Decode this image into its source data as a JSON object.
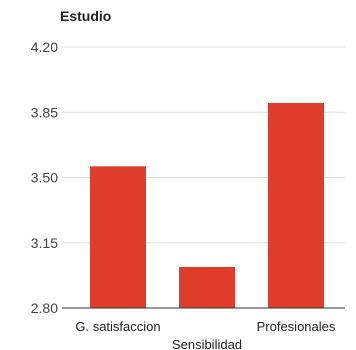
{
  "chart_data": {
    "type": "bar",
    "title": "Estudio",
    "categories": [
      "G. satisfaccion",
      "Sensibilidad",
      "Profesionales"
    ],
    "values": [
      3.56,
      3.02,
      3.9
    ],
    "ylim": [
      2.8,
      4.2
    ],
    "yticks": [
      "4.20",
      "3.85",
      "3.50",
      "3.15",
      "2.80"
    ],
    "xlabel": "",
    "ylabel": "",
    "grid": true,
    "legend": "none",
    "bar_color": "#e03c2c"
  }
}
